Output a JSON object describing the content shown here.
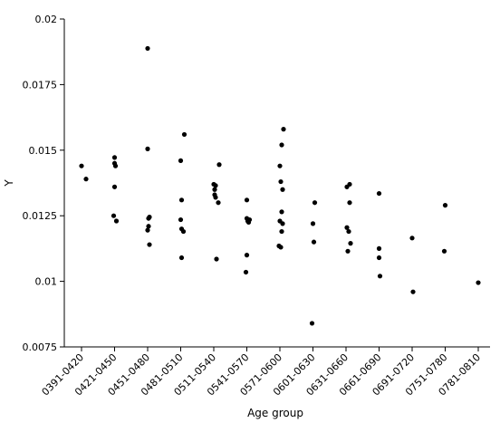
{
  "chart_data": {
    "type": "scatter",
    "xlabel": "Age group",
    "ylabel": "Y",
    "ylim": [
      0.0075,
      0.02
    ],
    "yticks": [
      "0.0075",
      "0.01",
      "0.0125",
      "0.015",
      "0.0175",
      "0.02"
    ],
    "categories": [
      "0391-0420",
      "0421-0450",
      "0451-0480",
      "0481-0510",
      "0511-0540",
      "0541-0570",
      "0571-0600",
      "0601-0630",
      "0631-0660",
      "0661-0690",
      "0691-0720",
      "0751-0780",
      "0781-0810"
    ],
    "grid": false,
    "point_color": "#000000",
    "points": [
      {
        "category": "0391-0420",
        "y": 0.0144,
        "offset": 0.0
      },
      {
        "category": "0391-0420",
        "y": 0.0139,
        "offset": 0.5
      },
      {
        "category": "0421-0450",
        "y": 0.01472,
        "offset": 0.0
      },
      {
        "category": "0421-0450",
        "y": 0.0145,
        "offset": 0.0
      },
      {
        "category": "0421-0450",
        "y": 0.0144,
        "offset": 0.1
      },
      {
        "category": "0421-0450",
        "y": 0.0136,
        "offset": 0.0
      },
      {
        "category": "0421-0450",
        "y": 0.0125,
        "offset": -0.1
      },
      {
        "category": "0421-0450",
        "y": 0.0123,
        "offset": 0.2
      },
      {
        "category": "0451-0480",
        "y": 0.01888,
        "offset": 0.0
      },
      {
        "category": "0451-0480",
        "y": 0.01505,
        "offset": 0.0
      },
      {
        "category": "0451-0480",
        "y": 0.01245,
        "offset": 0.2
      },
      {
        "category": "0451-0480",
        "y": 0.0124,
        "offset": 0.1
      },
      {
        "category": "0451-0480",
        "y": 0.0121,
        "offset": 0.1
      },
      {
        "category": "0451-0480",
        "y": 0.01195,
        "offset": 0.0
      },
      {
        "category": "0451-0480",
        "y": 0.0114,
        "offset": 0.2
      },
      {
        "category": "0481-0510",
        "y": 0.0156,
        "offset": 0.4
      },
      {
        "category": "0481-0510",
        "y": 0.0146,
        "offset": 0.0
      },
      {
        "category": "0481-0510",
        "y": 0.0131,
        "offset": 0.1
      },
      {
        "category": "0481-0510",
        "y": 0.01235,
        "offset": 0.0
      },
      {
        "category": "0481-0510",
        "y": 0.012,
        "offset": 0.1
      },
      {
        "category": "0481-0510",
        "y": 0.0119,
        "offset": 0.3
      },
      {
        "category": "0481-0510",
        "y": 0.0109,
        "offset": 0.1
      },
      {
        "category": "0511-0540",
        "y": 0.01445,
        "offset": 0.6
      },
      {
        "category": "0511-0540",
        "y": 0.0137,
        "offset": 0.0
      },
      {
        "category": "0511-0540",
        "y": 0.01365,
        "offset": 0.2
      },
      {
        "category": "0511-0540",
        "y": 0.0135,
        "offset": 0.1
      },
      {
        "category": "0511-0540",
        "y": 0.0133,
        "offset": 0.1
      },
      {
        "category": "0511-0540",
        "y": 0.0132,
        "offset": 0.2
      },
      {
        "category": "0511-0540",
        "y": 0.013,
        "offset": 0.5
      },
      {
        "category": "0511-0540",
        "y": 0.01085,
        "offset": 0.3
      },
      {
        "category": "0541-0570",
        "y": 0.0131,
        "offset": 0.0
      },
      {
        "category": "0541-0570",
        "y": 0.0124,
        "offset": 0.0
      },
      {
        "category": "0541-0570",
        "y": 0.01235,
        "offset": 0.3
      },
      {
        "category": "0541-0570",
        "y": 0.0123,
        "offset": 0.1
      },
      {
        "category": "0541-0570",
        "y": 0.01225,
        "offset": 0.2
      },
      {
        "category": "0541-0570",
        "y": 0.011,
        "offset": 0.0
      },
      {
        "category": "0541-0570",
        "y": 0.01035,
        "offset": -0.1
      },
      {
        "category": "0571-0600",
        "y": 0.0158,
        "offset": 0.4
      },
      {
        "category": "0571-0600",
        "y": 0.0152,
        "offset": 0.2
      },
      {
        "category": "0571-0600",
        "y": 0.0144,
        "offset": 0.0
      },
      {
        "category": "0571-0600",
        "y": 0.0138,
        "offset": 0.1
      },
      {
        "category": "0571-0600",
        "y": 0.0135,
        "offset": 0.3
      },
      {
        "category": "0571-0600",
        "y": 0.01265,
        "offset": 0.2
      },
      {
        "category": "0571-0600",
        "y": 0.0123,
        "offset": 0.0
      },
      {
        "category": "0571-0600",
        "y": 0.0122,
        "offset": 0.3
      },
      {
        "category": "0571-0600",
        "y": 0.0119,
        "offset": 0.2
      },
      {
        "category": "0571-0600",
        "y": 0.01135,
        "offset": -0.1
      },
      {
        "category": "0571-0600",
        "y": 0.0113,
        "offset": 0.1
      },
      {
        "category": "0601-0630",
        "y": 0.013,
        "offset": 0.2
      },
      {
        "category": "0601-0630",
        "y": 0.0122,
        "offset": 0.0
      },
      {
        "category": "0601-0630",
        "y": 0.0115,
        "offset": 0.1
      },
      {
        "category": "0601-0630",
        "y": 0.0084,
        "offset": -0.1
      },
      {
        "category": "0631-0660",
        "y": 0.0137,
        "offset": 0.4
      },
      {
        "category": "0631-0660",
        "y": 0.0136,
        "offset": 0.1
      },
      {
        "category": "0631-0660",
        "y": 0.013,
        "offset": 0.4
      },
      {
        "category": "0631-0660",
        "y": 0.01205,
        "offset": 0.1
      },
      {
        "category": "0631-0660",
        "y": 0.0119,
        "offset": 0.3
      },
      {
        "category": "0631-0660",
        "y": 0.01145,
        "offset": 0.5
      },
      {
        "category": "0631-0660",
        "y": 0.01115,
        "offset": 0.2
      },
      {
        "category": "0661-0690",
        "y": 0.01335,
        "offset": 0.0
      },
      {
        "category": "0661-0690",
        "y": 0.01125,
        "offset": 0.0
      },
      {
        "category": "0661-0690",
        "y": 0.0109,
        "offset": 0.0
      },
      {
        "category": "0661-0690",
        "y": 0.0102,
        "offset": 0.1
      },
      {
        "category": "0691-0720",
        "y": 0.01165,
        "offset": 0.0
      },
      {
        "category": "0691-0720",
        "y": 0.0096,
        "offset": 0.1
      },
      {
        "category": "0751-0780",
        "y": 0.0129,
        "offset": 0.0
      },
      {
        "category": "0751-0780",
        "y": 0.01115,
        "offset": -0.1
      },
      {
        "category": "0781-0810",
        "y": 0.00995,
        "offset": 0.0
      }
    ]
  }
}
